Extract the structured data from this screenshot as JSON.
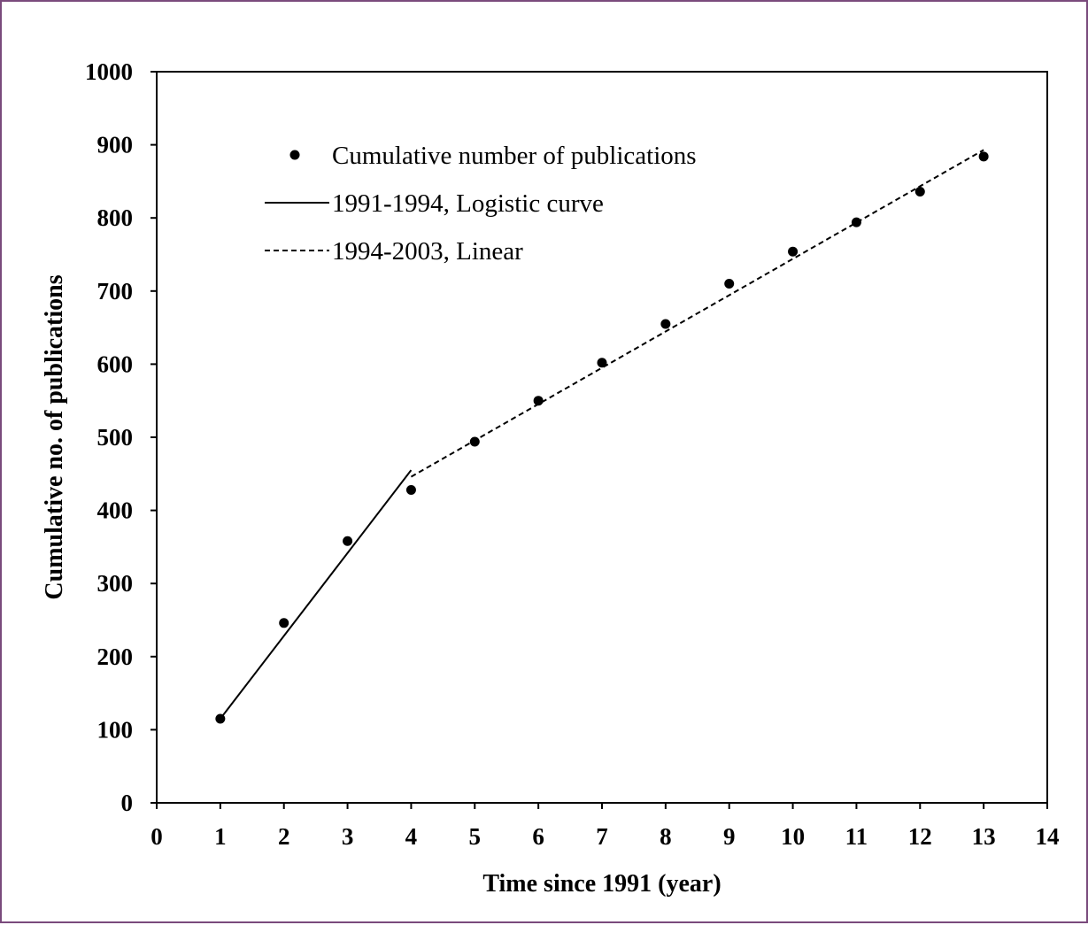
{
  "frame_color": "#7a4a7c",
  "chart_data": {
    "type": "scatter",
    "xlabel": "Time since 1991 (year)",
    "ylabel": "Cumulative no. of publications",
    "xlim": [
      0,
      14
    ],
    "ylim": [
      0,
      1000
    ],
    "x_ticks": [
      "0",
      "1",
      "2",
      "3",
      "4",
      "5",
      "6",
      "7",
      "8",
      "9",
      "10",
      "11",
      "12",
      "13",
      "14"
    ],
    "y_ticks": [
      "0",
      "100",
      "200",
      "300",
      "400",
      "500",
      "600",
      "700",
      "800",
      "900",
      "1000"
    ],
    "grid": false,
    "legend_position": "top-left",
    "series": [
      {
        "name": "Cumulative number of publications",
        "kind": "scatter",
        "marker": "filled-circle",
        "color": "#000000",
        "x": [
          1,
          2,
          3,
          4,
          5,
          6,
          7,
          8,
          9,
          10,
          11,
          12,
          13
        ],
        "y": [
          115,
          246,
          358,
          428,
          494,
          550,
          602,
          655,
          710,
          754,
          794,
          836,
          884
        ]
      },
      {
        "name": "1991-1994, Logistic curve",
        "kind": "line",
        "style": "solid",
        "color": "#000000",
        "x": [
          1,
          4
        ],
        "y": [
          115,
          455
        ]
      },
      {
        "name": "1994-2003, Linear",
        "kind": "line",
        "style": "dashed",
        "color": "#000000",
        "x": [
          4,
          13
        ],
        "y": [
          446,
          893
        ]
      }
    ]
  }
}
